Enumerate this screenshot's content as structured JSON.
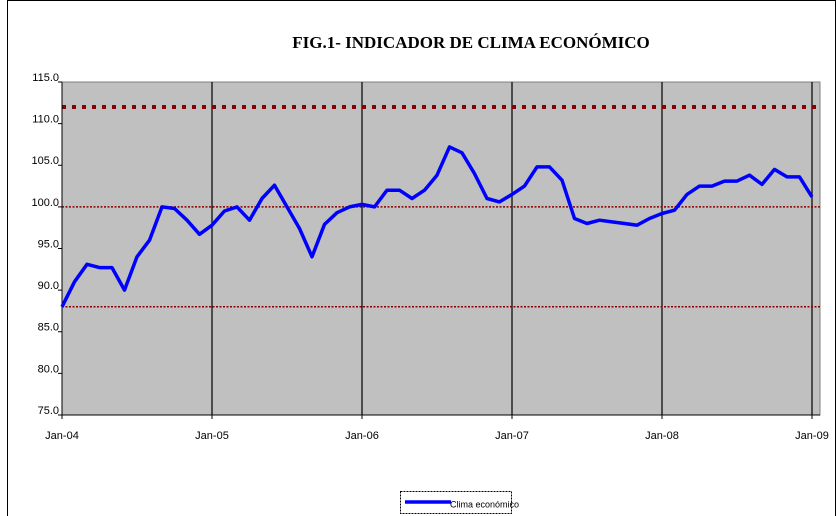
{
  "chart_data": {
    "type": "line",
    "title": "FIG.1- INDICADOR DE CLIMA ECONÓMICO",
    "categories": [
      "Jan-04",
      null,
      null,
      null,
      null,
      null,
      null,
      null,
      null,
      null,
      null,
      null,
      "Jan-05",
      null,
      null,
      null,
      null,
      null,
      null,
      null,
      null,
      null,
      null,
      null,
      "Jan-06",
      null,
      null,
      null,
      null,
      null,
      null,
      null,
      null,
      null,
      null,
      null,
      "Jan-07",
      null,
      null,
      null,
      null,
      null,
      null,
      null,
      null,
      null,
      null,
      null,
      "Jan-08",
      null,
      null,
      null,
      null,
      null,
      null,
      null,
      null,
      null,
      null,
      null,
      "Jan-09"
    ],
    "series": [
      {
        "name": "Clima económico",
        "color": "#0000ff",
        "values": [
          88.0,
          91.0,
          93.1,
          92.7,
          92.7,
          90.0,
          94.0,
          96.0,
          100.0,
          99.8,
          98.4,
          96.7,
          97.8,
          99.5,
          100.0,
          98.4,
          101.0,
          102.6,
          100.0,
          97.4,
          94.0,
          97.9,
          99.3,
          100.0,
          100.3,
          100.0,
          102.0,
          102.0,
          101.0,
          102.0,
          103.8,
          107.2,
          106.5,
          104.0,
          101.0,
          100.6,
          101.5,
          102.5,
          104.8,
          104.8,
          103.2,
          98.6,
          98.0,
          98.4,
          98.2,
          98.0,
          97.8,
          98.6,
          99.2,
          99.6,
          101.5,
          102.5,
          102.5,
          103.1,
          103.1,
          103.8,
          102.7,
          104.5,
          103.6,
          103.6,
          101.2
        ]
      }
    ],
    "ylim": [
      75,
      115
    ],
    "yticks": [
      {
        "value": 75,
        "label": "75.0"
      },
      {
        "value": 80,
        "label": "80.0"
      },
      {
        "value": 85,
        "label": "85.0"
      },
      {
        "value": 90,
        "label": "90.0"
      },
      {
        "value": 95,
        "label": "95.0"
      },
      {
        "value": 100,
        "label": "100.0"
      },
      {
        "value": 105,
        "label": "105.0"
      },
      {
        "value": 110,
        "label": "110.0"
      },
      {
        "value": 115,
        "label": "115.0"
      }
    ],
    "hlines": [
      112,
      100,
      88
    ],
    "hline_styles": [
      "heavy",
      "light",
      "light"
    ],
    "hline_color": "#8b0000",
    "plot_background": "#c0c0c0",
    "grid": "x",
    "legend": "bottom"
  }
}
